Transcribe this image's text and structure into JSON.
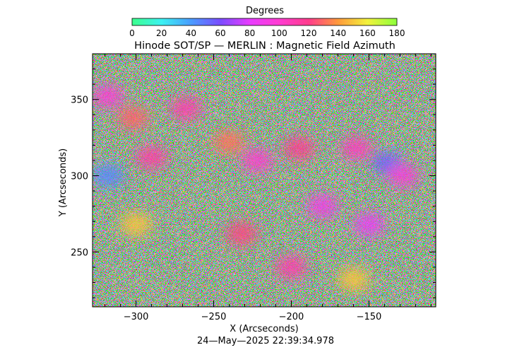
{
  "chart_data": {
    "type": "heatmap",
    "title": "Hinode SOT/SP — MERLIN : Magnetic Field Azimuth",
    "xlabel": "X (Arcseconds)",
    "ylabel": "Y (Arcseconds)",
    "xlim": [
      -328,
      -107
    ],
    "ylim": [
      214,
      380
    ],
    "xticks": [
      -300,
      -250,
      -200,
      -150
    ],
    "yticks": [
      250,
      300,
      350
    ],
    "timestamp": "24—May—2025 22:39:34.978",
    "colorbar": {
      "label": "Degrees",
      "range": [
        0,
        180
      ],
      "ticks": [
        0,
        20,
        40,
        60,
        80,
        100,
        120,
        140,
        160,
        180
      ],
      "colors": [
        "#3cff8c",
        "#3cf2f2",
        "#4a9cff",
        "#7a4cff",
        "#e83cff",
        "#ff3cd2",
        "#ff3c8c",
        "#ff9a3c",
        "#f2f23c",
        "#8cff3c"
      ]
    },
    "regions": [
      {
        "x": -318,
        "y": 352,
        "value": 98
      },
      {
        "x": -302,
        "y": 338,
        "value": 128
      },
      {
        "x": -290,
        "y": 312,
        "value": 112
      },
      {
        "x": -318,
        "y": 300,
        "value": 45
      },
      {
        "x": -300,
        "y": 268,
        "value": 150
      },
      {
        "x": -268,
        "y": 344,
        "value": 110
      },
      {
        "x": -240,
        "y": 322,
        "value": 132
      },
      {
        "x": -222,
        "y": 310,
        "value": 100
      },
      {
        "x": -195,
        "y": 318,
        "value": 118
      },
      {
        "x": -180,
        "y": 280,
        "value": 90
      },
      {
        "x": -158,
        "y": 318,
        "value": 105
      },
      {
        "x": -138,
        "y": 308,
        "value": 55
      },
      {
        "x": -128,
        "y": 300,
        "value": 96
      },
      {
        "x": -150,
        "y": 268,
        "value": 84
      },
      {
        "x": -232,
        "y": 262,
        "value": 122
      },
      {
        "x": -200,
        "y": 240,
        "value": 110
      },
      {
        "x": -160,
        "y": 232,
        "value": 150
      }
    ]
  }
}
